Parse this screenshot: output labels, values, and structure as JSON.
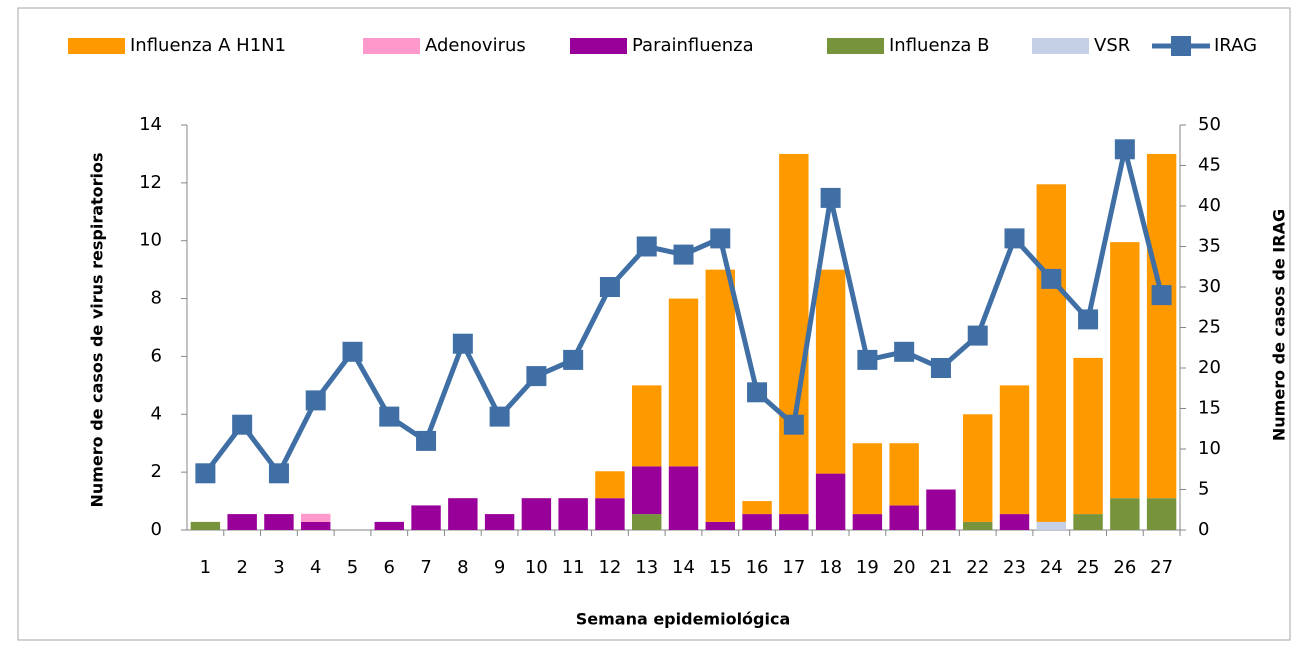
{
  "chart_data": {
    "type": "bar",
    "stacked": true,
    "x_label": "Semana epidemiológica",
    "y_label": "Numero de casos  de virus respiratorios",
    "y2_label": "Numero de casos de IRAG",
    "categories": [
      "1",
      "2",
      "3",
      "4",
      "5",
      "6",
      "7",
      "8",
      "9",
      "10",
      "11",
      "12",
      "13",
      "14",
      "15",
      "16",
      "17",
      "18",
      "19",
      "20",
      "21",
      "22",
      "23",
      "24",
      "25",
      "26",
      "27"
    ],
    "series": [
      {
        "name": "Influenza A H1N1",
        "color": "#ff9900",
        "values": [
          0,
          0,
          0,
          0,
          0,
          0,
          0,
          0,
          0,
          0,
          0,
          0.93,
          2.8,
          5.8,
          8.72,
          0.45,
          12.45,
          7.05,
          2.45,
          2.15,
          0,
          3.72,
          4.45,
          11.67,
          5.4,
          8.85,
          11.9
        ]
      },
      {
        "name": "Adenovirus",
        "color": "#ff99cc",
        "values": [
          0,
          0,
          0,
          0.28,
          0,
          0,
          0,
          0,
          0,
          0,
          0,
          0,
          0,
          0,
          0,
          0,
          0,
          0,
          0,
          0,
          0,
          0,
          0,
          0,
          0,
          0,
          0
        ]
      },
      {
        "name": "Parainfluenza",
        "color": "#990099",
        "values": [
          0,
          0.55,
          0.55,
          0.28,
          0,
          0.28,
          0.85,
          1.1,
          0.55,
          1.1,
          1.1,
          1.1,
          1.65,
          2.2,
          0.28,
          0.55,
          0.55,
          1.95,
          0.55,
          0.85,
          1.4,
          0,
          0.55,
          0,
          0,
          0,
          0
        ]
      },
      {
        "name": "Influenza B",
        "color": "#77933c",
        "values": [
          0.28,
          0,
          0,
          0,
          0,
          0,
          0,
          0,
          0,
          0,
          0,
          0,
          0.55,
          0,
          0,
          0,
          0,
          0,
          0,
          0,
          0,
          0.28,
          0,
          0,
          0.55,
          1.1,
          1.1
        ]
      },
      {
        "name": "VSR",
        "color": "#c5d0e6",
        "values": [
          0,
          0,
          0,
          0,
          0,
          0,
          0,
          0,
          0,
          0,
          0,
          0,
          0,
          0,
          0,
          0,
          0,
          0,
          0,
          0,
          0,
          0,
          0,
          0.28,
          0,
          0,
          0
        ]
      },
      {
        "name": "IRAG",
        "color": "#3f6fa5",
        "type": "line",
        "axis": "y2",
        "values": [
          7,
          13,
          7,
          16,
          22,
          14,
          11,
          23,
          14,
          19,
          21,
          30,
          35,
          34,
          36,
          17,
          13,
          41,
          21,
          22,
          20,
          24,
          36,
          31,
          26,
          47,
          29
        ]
      }
    ],
    "ylim": [
      0,
      14
    ],
    "yticks": [
      0,
      2,
      4,
      6,
      8,
      10,
      12,
      14
    ],
    "y2lim": [
      0,
      50
    ],
    "y2ticks": [
      0,
      5,
      10,
      15,
      20,
      25,
      30,
      35,
      40,
      45,
      50
    ],
    "legend": "top"
  }
}
